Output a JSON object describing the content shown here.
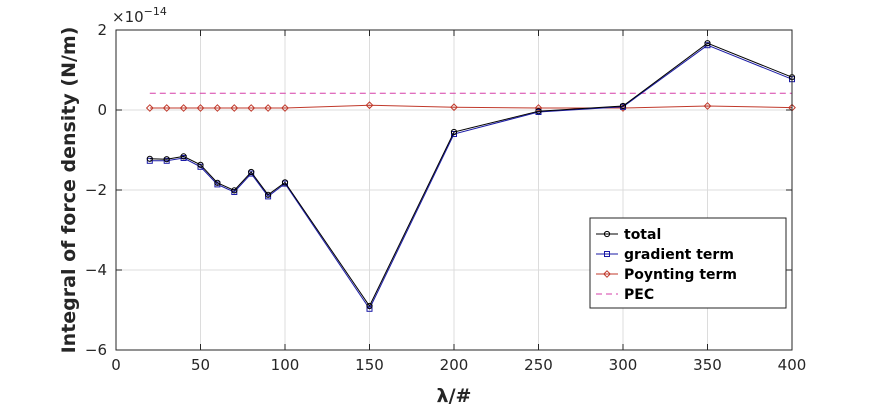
{
  "chart_data": {
    "type": "line",
    "title": "",
    "xlabel": "λ/#",
    "ylabel": "Integral of force density (N/m)",
    "exponent_label": "×10",
    "exponent_power": "−14",
    "xlim": [
      0,
      400
    ],
    "ylim": [
      -6,
      2
    ],
    "xticks": [
      0,
      50,
      100,
      150,
      200,
      250,
      300,
      350,
      400
    ],
    "xtick_labels": [
      "0",
      "50",
      "100",
      "150",
      "200",
      "250",
      "300",
      "350",
      "400"
    ],
    "yticks": [
      -6,
      -4,
      -2,
      0,
      2
    ],
    "ytick_labels": [
      "−6",
      "−4",
      "−2",
      "0",
      "2"
    ],
    "grid": true,
    "legend_position": "bottom-right",
    "x": [
      20,
      30,
      40,
      50,
      60,
      70,
      80,
      90,
      100,
      150,
      200,
      250,
      300,
      350,
      400
    ],
    "series": [
      {
        "name": "total",
        "color": "#000000",
        "marker": "circle",
        "values": [
          -1.22,
          -1.23,
          -1.16,
          -1.37,
          -1.82,
          -2.01,
          -1.55,
          -2.12,
          -1.81,
          -4.9,
          -0.55,
          -0.03,
          0.1,
          1.67,
          0.82
        ]
      },
      {
        "name": "gradient term",
        "color": "#1a1aa6",
        "marker": "square",
        "values": [
          -1.27,
          -1.27,
          -1.2,
          -1.42,
          -1.86,
          -2.05,
          -1.59,
          -2.16,
          -1.84,
          -4.97,
          -0.6,
          -0.05,
          0.08,
          1.62,
          0.77
        ]
      },
      {
        "name": "Poynting term",
        "color": "#c0392b",
        "marker": "diamond",
        "values": [
          0.05,
          0.05,
          0.05,
          0.05,
          0.05,
          0.05,
          0.05,
          0.05,
          0.05,
          0.12,
          0.07,
          0.05,
          0.05,
          0.1,
          0.06
        ]
      },
      {
        "name": "PEC",
        "color": "#d63fa8",
        "dashed": true,
        "values": [
          0.42,
          0.42,
          0.42,
          0.42,
          0.42,
          0.42,
          0.42,
          0.42,
          0.42,
          0.42,
          0.42,
          0.42,
          0.42,
          0.42,
          0.42
        ]
      }
    ]
  }
}
